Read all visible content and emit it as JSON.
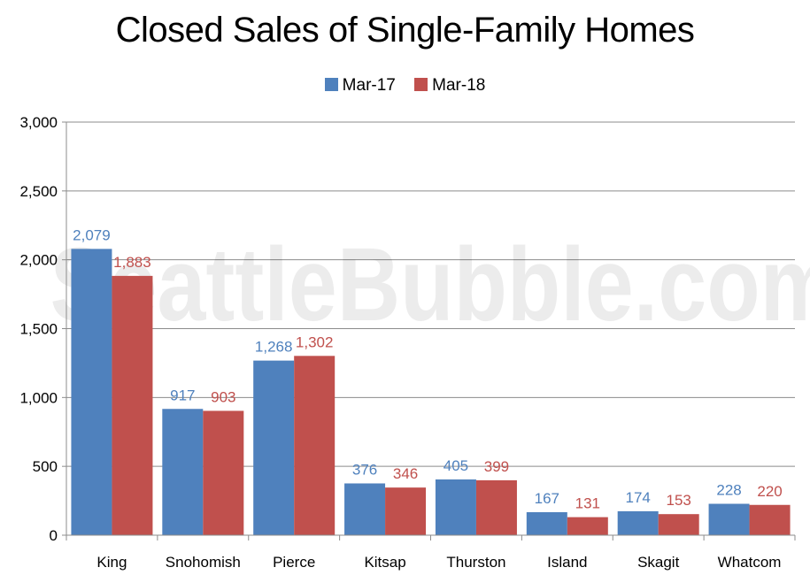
{
  "chart_data": {
    "type": "bar",
    "title": "Closed Sales of Single-Family Homes",
    "watermark": "SeattleBubble.com",
    "categories": [
      "King",
      "Snohomish",
      "Pierce",
      "Kitsap",
      "Thurston",
      "Island",
      "Skagit",
      "Whatcom"
    ],
    "series": [
      {
        "name": "Mar-17",
        "color": "#4f81bd",
        "values": [
          2079,
          917,
          1268,
          376,
          405,
          167,
          174,
          228
        ],
        "labels": [
          "2,079",
          "917",
          "1,268",
          "376",
          "405",
          "167",
          "174",
          "228"
        ]
      },
      {
        "name": "Mar-18",
        "color": "#c0504d",
        "values": [
          1883,
          903,
          1302,
          346,
          399,
          131,
          153,
          220
        ],
        "labels": [
          "1,883",
          "903",
          "1,302",
          "346",
          "399",
          "131",
          "153",
          "220"
        ]
      }
    ],
    "ylim": [
      0,
      3000
    ],
    "yticks": [
      0,
      500,
      1000,
      1500,
      2000,
      2500,
      3000
    ],
    "ytick_labels": [
      "0",
      "500",
      "1,000",
      "1,500",
      "2,000",
      "2,500",
      "3,000"
    ],
    "grid": true,
    "legend_position": "top-center",
    "xlabel": "",
    "ylabel": ""
  }
}
